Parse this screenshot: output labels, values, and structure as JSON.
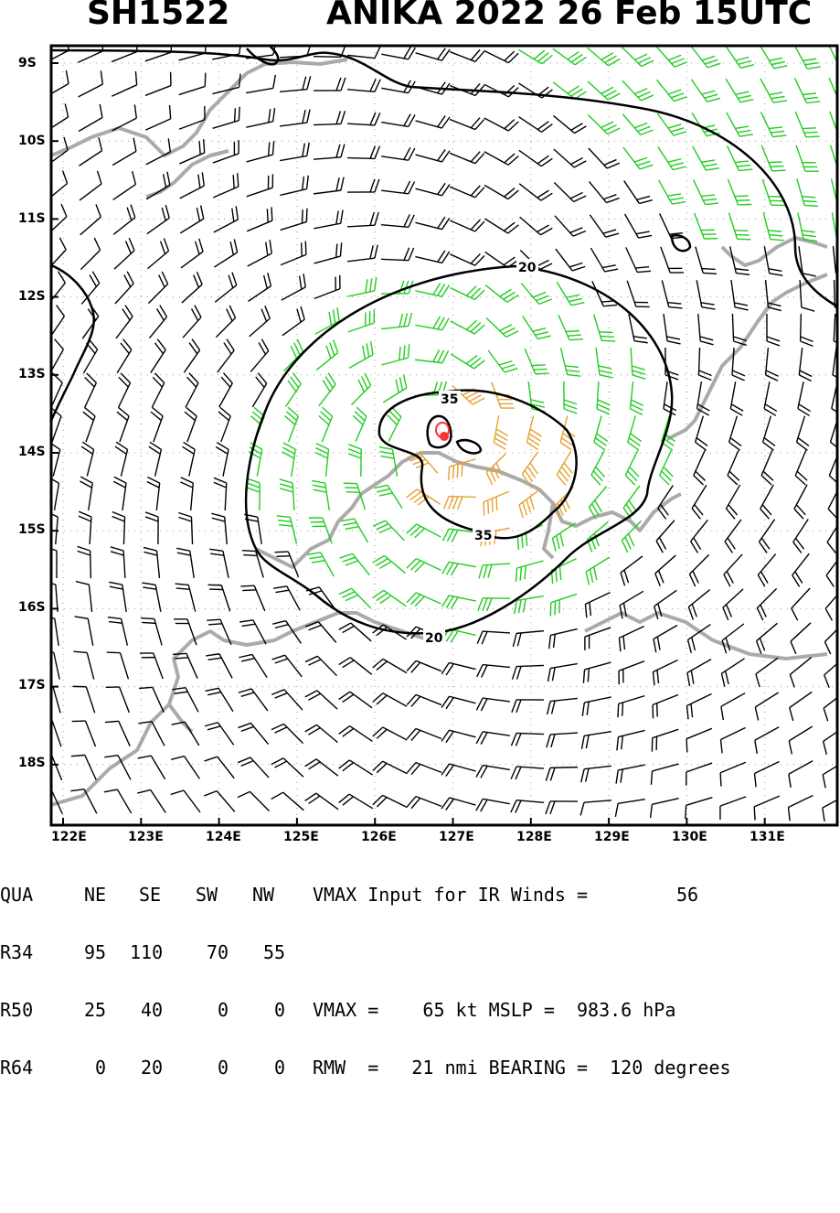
{
  "title": {
    "storm_id": "SH1522",
    "storm_info": "ANIKA 2022 26 Feb 15UTC"
  },
  "map": {
    "lat_labels": [
      "9S",
      "10S",
      "11S",
      "12S",
      "13S",
      "14S",
      "15S",
      "16S",
      "17S",
      "18S"
    ],
    "lon_labels": [
      "122E",
      "123E",
      "124E",
      "125E",
      "126E",
      "127E",
      "128E",
      "129E",
      "130E",
      "131E"
    ],
    "contour_labels": [
      "20",
      "35",
      "35",
      "20"
    ],
    "colors": {
      "barb_default": "#000000",
      "barb_34kt": "#22cc22",
      "barb_50kt": "#e8a030",
      "center": "#ff3030",
      "coastline": "#aaaaaa",
      "contour": "#000000"
    }
  },
  "info": {
    "header": [
      "QUA",
      "NE",
      "SE",
      "SW",
      "NW"
    ],
    "vmax_input_label": "VMAX Input for IR Winds =",
    "vmax_input_value": "56",
    "rows": [
      {
        "label": "R34",
        "ne": "95",
        "se": "110",
        "sw": "70",
        "nw": "55",
        "extra": ""
      },
      {
        "label": "R50",
        "ne": "25",
        "se": "40",
        "sw": "0",
        "nw": "0",
        "extra": "VMAX =    65 kt MSLP =  983.6 hPa"
      },
      {
        "label": "R64",
        "ne": "0",
        "se": "20",
        "sw": "0",
        "nw": "0",
        "extra": "RMW  =   21 nmi BEARING =  120 degrees"
      }
    ]
  }
}
